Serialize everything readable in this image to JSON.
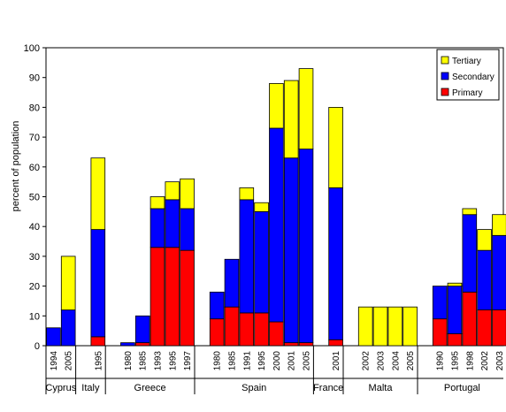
{
  "chart_data": {
    "type": "bar",
    "stacked": true,
    "title": "",
    "xlabel": "",
    "ylabel": "percent of population",
    "ylim": [
      0,
      100
    ],
    "yticks": [
      0,
      10,
      20,
      30,
      40,
      50,
      60,
      70,
      80,
      90,
      100
    ],
    "grid": false,
    "legend_position": "top-right",
    "colors": {
      "Primary": "#ff0000",
      "Secondary": "#0000ff",
      "Tertiary": "#ffff00"
    },
    "groups": [
      {
        "name": "Cyprus",
        "categories": [
          "1994",
          "2005"
        ]
      },
      {
        "name": "Italy",
        "categories": [
          "1995"
        ]
      },
      {
        "name": "Greece",
        "categories": [
          "1980",
          "1985",
          "1993",
          "1995",
          "1997"
        ]
      },
      {
        "name": "Spain",
        "categories": [
          "1980",
          "1985",
          "1991",
          "1995",
          "2000",
          "2001",
          "2005"
        ]
      },
      {
        "name": "France",
        "categories": [
          "2001"
        ]
      },
      {
        "name": "Malta",
        "categories": [
          "2002",
          "2003",
          "2004",
          "2005"
        ]
      },
      {
        "name": "Portugal",
        "categories": [
          "1990",
          "1995",
          "1998",
          "2002",
          "2003"
        ]
      }
    ],
    "series": [
      {
        "name": "Primary",
        "values": [
          0,
          0,
          3,
          0,
          1,
          33,
          33,
          32,
          9,
          13,
          11,
          11,
          8,
          1,
          1,
          2,
          0,
          0,
          0,
          0,
          9,
          4,
          18,
          12,
          12
        ]
      },
      {
        "name": "Secondary",
        "values": [
          6,
          12,
          36,
          1,
          9,
          13,
          16,
          14,
          9,
          16,
          38,
          34,
          65,
          62,
          65,
          51,
          0,
          0,
          0,
          0,
          11,
          16,
          26,
          20,
          25
        ]
      },
      {
        "name": "Tertiary",
        "values": [
          0,
          18,
          24,
          0,
          0,
          4,
          6,
          10,
          0,
          0,
          4,
          3,
          15,
          26,
          27,
          27,
          13,
          13,
          13,
          13,
          0,
          1,
          2,
          7,
          7
        ]
      }
    ],
    "legend_order": [
      "Tertiary",
      "Secondary",
      "Primary"
    ]
  }
}
